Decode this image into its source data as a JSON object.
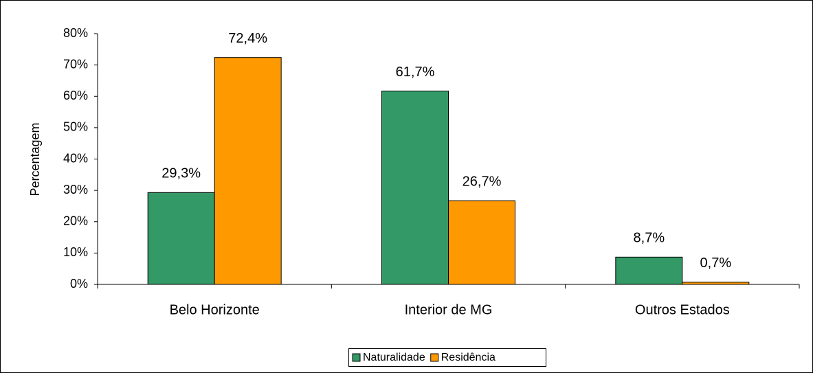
{
  "chart_data": {
    "type": "bar",
    "y_label": "Percentagem",
    "categories": [
      "Belo Horizonte",
      "Interior de MG",
      "Outros Estados"
    ],
    "series": [
      {
        "name": "Naturalidade",
        "color": "#339966",
        "values": [
          29.3,
          61.7,
          8.7
        ],
        "value_labels": [
          "29,3%",
          "61,7%",
          "8,7%"
        ]
      },
      {
        "name": "Residência",
        "color": "#ff9900",
        "values": [
          72.4,
          26.7,
          0.7
        ],
        "value_labels": [
          "72,4%",
          "26,7%",
          "0,7%"
        ]
      }
    ],
    "ylim": [
      0,
      80
    ],
    "yticks": [
      {
        "value": 0,
        "label": "0%"
      },
      {
        "value": 10,
        "label": "10%"
      },
      {
        "value": 20,
        "label": "20%"
      },
      {
        "value": 30,
        "label": "30%"
      },
      {
        "value": 40,
        "label": "40%"
      },
      {
        "value": 50,
        "label": "50%"
      },
      {
        "value": 60,
        "label": "60%"
      },
      {
        "value": 70,
        "label": "70%"
      },
      {
        "value": 80,
        "label": "80%"
      }
    ],
    "legend": "bottom"
  }
}
